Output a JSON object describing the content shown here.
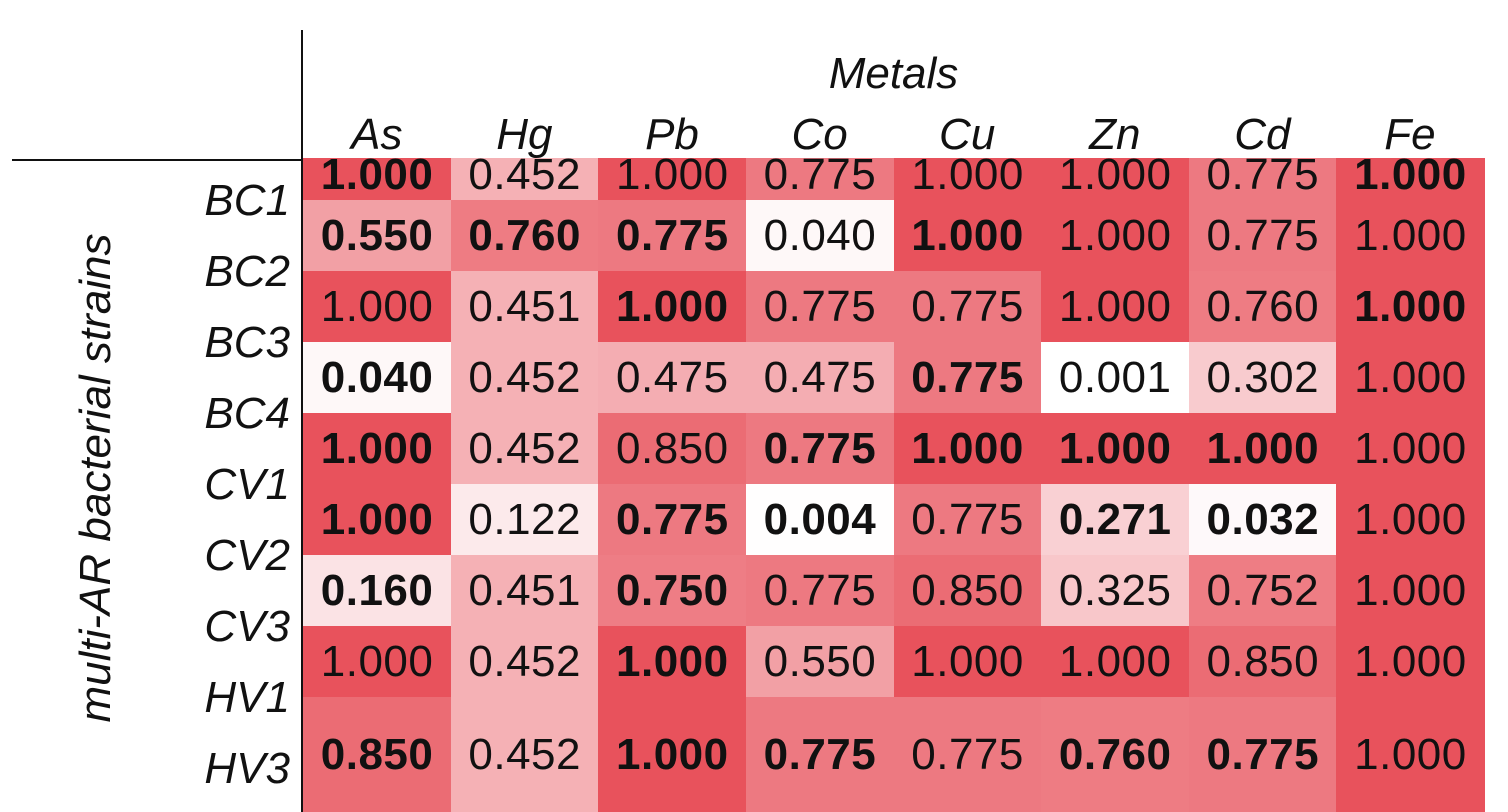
{
  "chart_data": {
    "type": "heatmap",
    "title": "",
    "column_group_label": "Metals",
    "row_group_label": "multi-AR bacterial strains",
    "columns": [
      "As",
      "Hg",
      "Pb",
      "Co",
      "Cu",
      "Zn",
      "Cd",
      "Fe"
    ],
    "rows": [
      "BC1",
      "BC2",
      "BC3",
      "BC4",
      "CV1",
      "CV2",
      "CV3",
      "HV1",
      "HV3"
    ],
    "values": [
      [
        "1.000",
        "0.452",
        "1.000",
        "0.775",
        "1.000",
        "1.000",
        "0.775",
        "1.000"
      ],
      [
        "0.550",
        "0.760",
        "0.775",
        "0.040",
        "1.000",
        "1.000",
        "0.775",
        "1.000"
      ],
      [
        "1.000",
        "0.451",
        "1.000",
        "0.775",
        "0.775",
        "1.000",
        "0.760",
        "1.000"
      ],
      [
        "0.040",
        "0.452",
        "0.475",
        "0.475",
        "0.775",
        "0.001",
        "0.302",
        "1.000"
      ],
      [
        "1.000",
        "0.452",
        "0.850",
        "0.775",
        "1.000",
        "1.000",
        "1.000",
        "1.000"
      ],
      [
        "1.000",
        "0.122",
        "0.775",
        "0.004",
        "0.775",
        "0.271",
        "0.032",
        "1.000"
      ],
      [
        "0.160",
        "0.451",
        "0.750",
        "0.775",
        "0.850",
        "0.325",
        "0.752",
        "1.000"
      ],
      [
        "1.000",
        "0.452",
        "1.000",
        "0.550",
        "1.000",
        "1.000",
        "0.850",
        "1.000"
      ],
      [
        "0.850",
        "0.452",
        "1.000",
        "0.775",
        "0.775",
        "0.760",
        "0.775",
        "1.000"
      ]
    ],
    "bold": [
      [
        true,
        false,
        false,
        false,
        false,
        false,
        false,
        true
      ],
      [
        true,
        true,
        true,
        false,
        true,
        false,
        false,
        false
      ],
      [
        false,
        false,
        true,
        false,
        false,
        false,
        false,
        true
      ],
      [
        true,
        false,
        false,
        false,
        true,
        false,
        false,
        false
      ],
      [
        true,
        false,
        false,
        true,
        true,
        true,
        true,
        false
      ],
      [
        true,
        false,
        true,
        true,
        false,
        true,
        true,
        false
      ],
      [
        true,
        false,
        true,
        false,
        false,
        false,
        false,
        false
      ],
      [
        false,
        false,
        true,
        false,
        false,
        false,
        false,
        false
      ],
      [
        true,
        false,
        true,
        true,
        false,
        true,
        true,
        false
      ]
    ],
    "color_scale": {
      "low": "#ffffff",
      "high": "#e8525c"
    }
  }
}
